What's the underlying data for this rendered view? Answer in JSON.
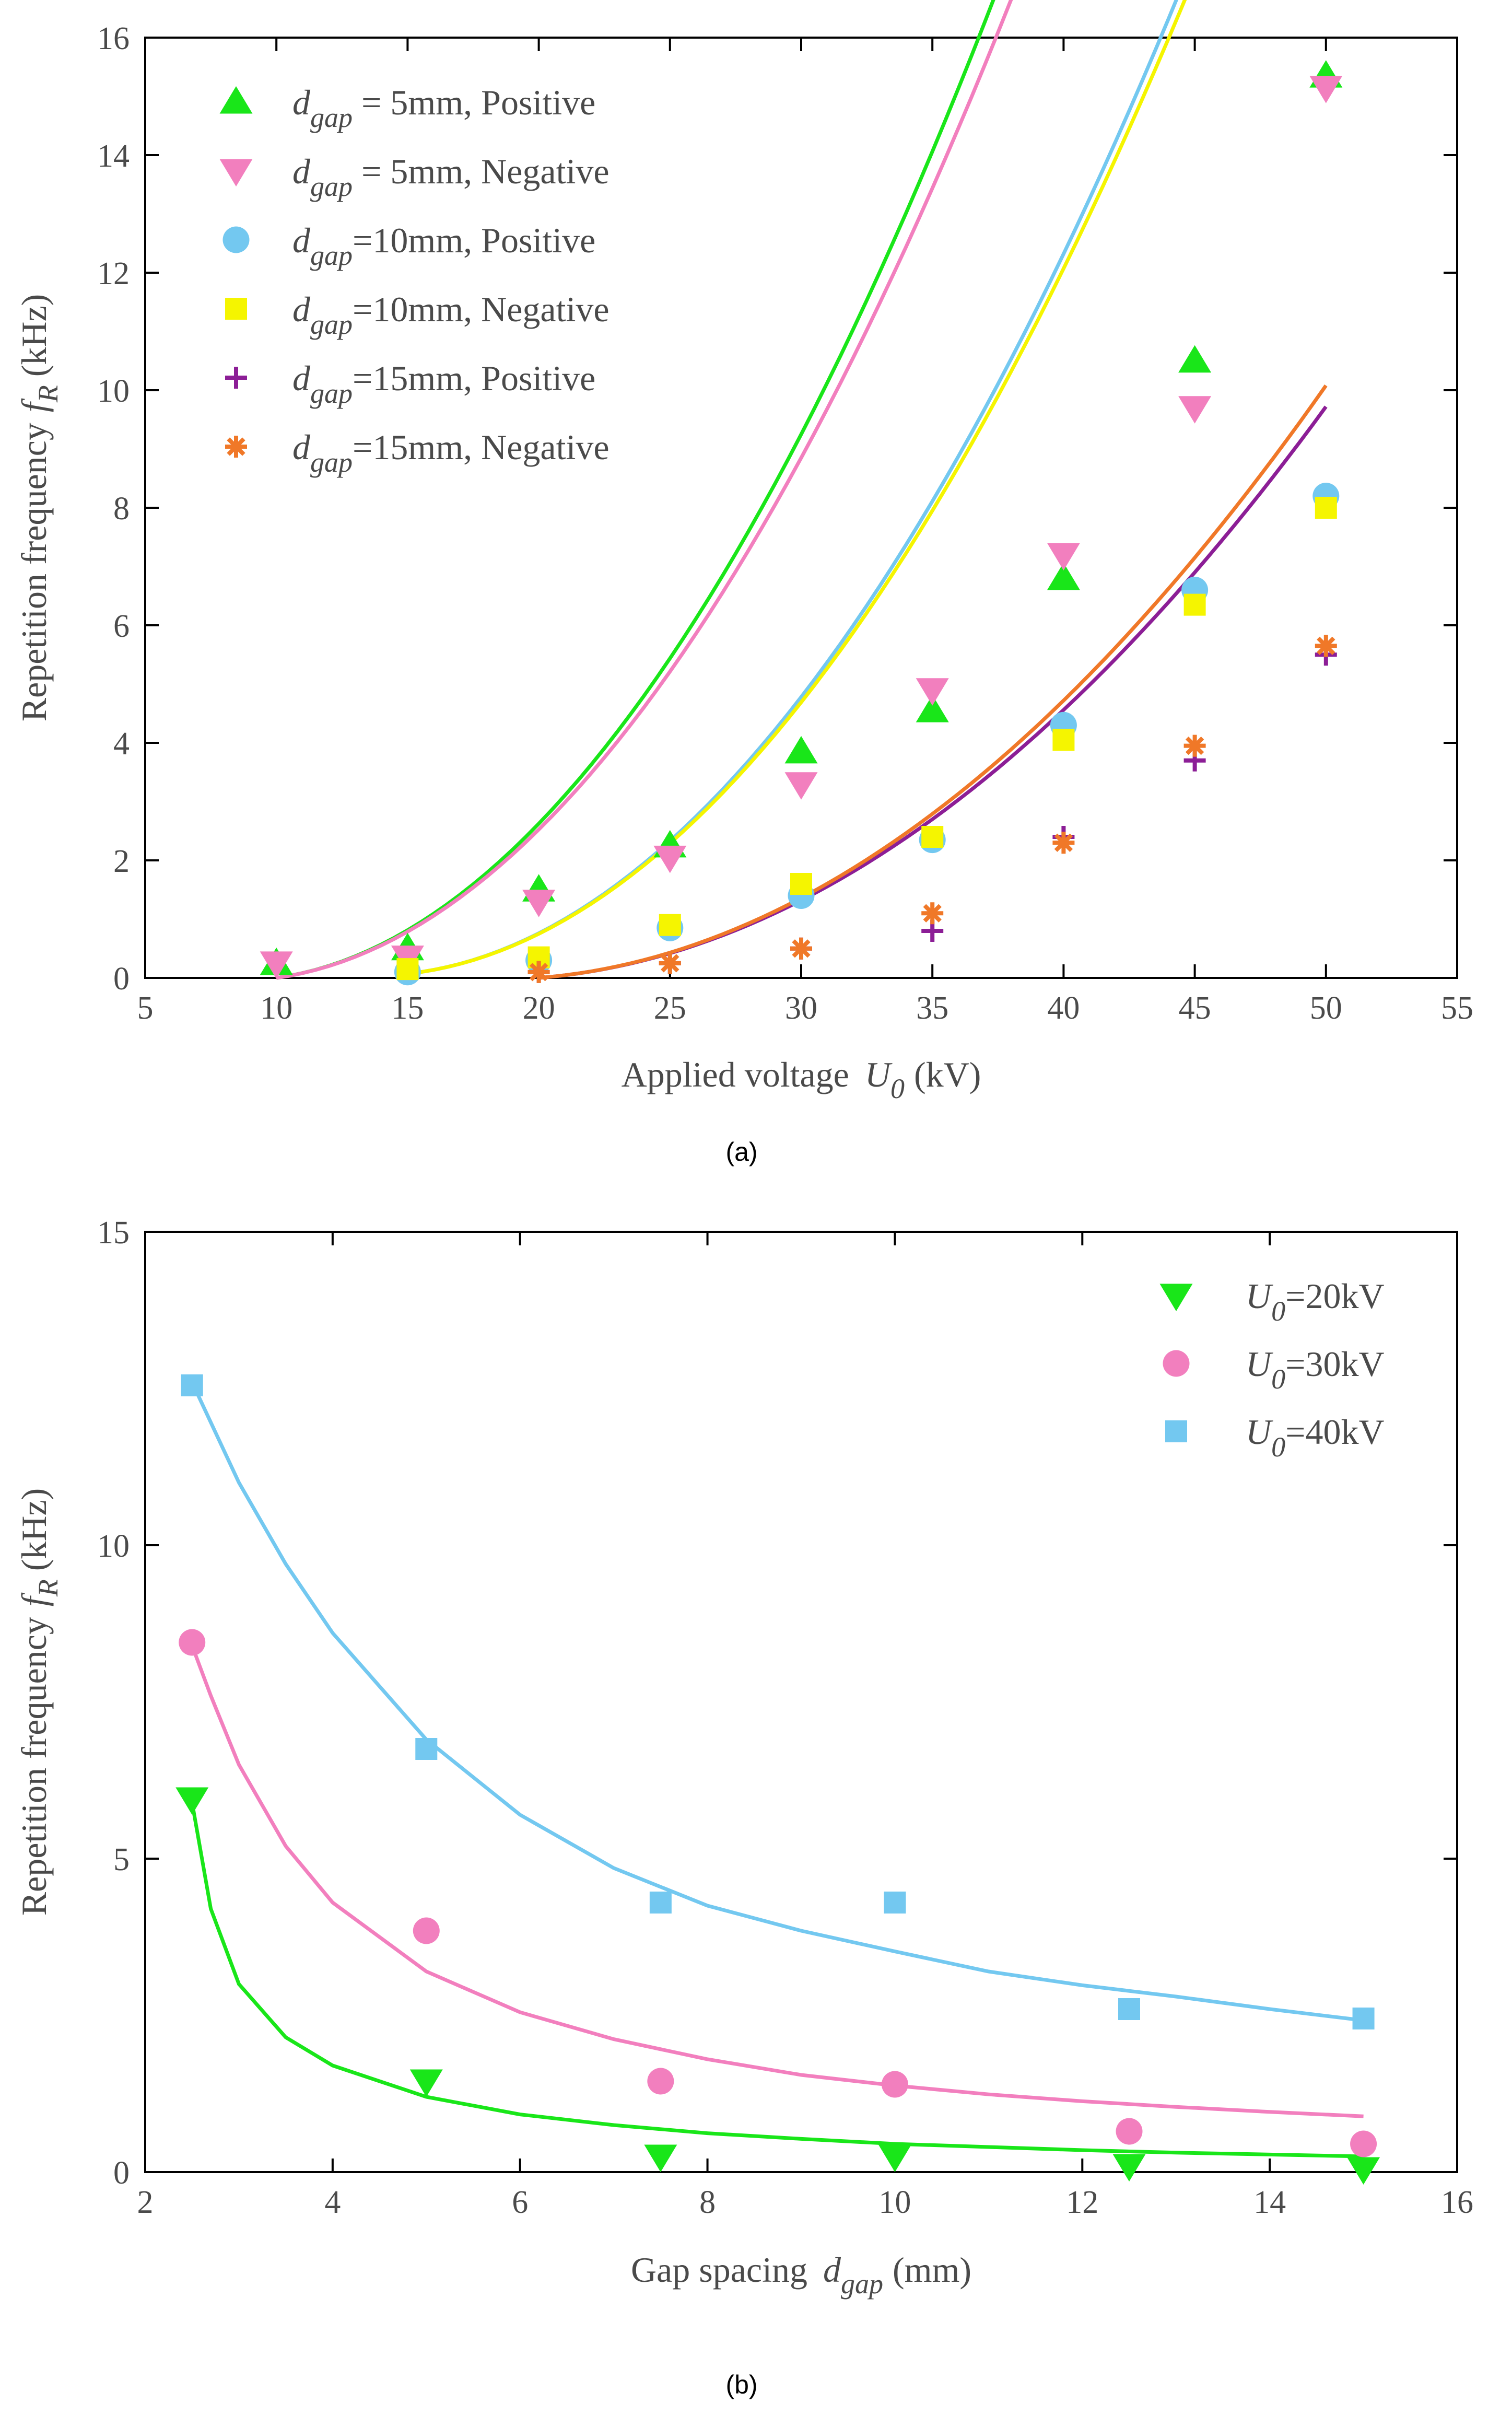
{
  "chart_data": [
    {
      "type": "scatter",
      "caption": "(a)",
      "xlabel_main": "Applied voltage",
      "xlabel_sym": "U",
      "xlabel_sub": "0",
      "xlabel_unit": "(kV)",
      "ylabel_main": "Repetition frequency",
      "ylabel_sym": "f",
      "ylabel_sub": "R",
      "ylabel_unit": "(kHz)",
      "xlim": [
        5,
        55
      ],
      "ylim": [
        0,
        16
      ],
      "xticks": [
        5,
        10,
        15,
        20,
        25,
        30,
        35,
        40,
        45,
        50,
        55
      ],
      "yticks": [
        0,
        2,
        4,
        6,
        8,
        10,
        12,
        14,
        16
      ],
      "legend_position": "top-left",
      "series": [
        {
          "legend_sym": "d",
          "legend_sub": "gap",
          "legend_rest": " = 5mm, Positive",
          "marker": "triangle-up",
          "color": "#19e619",
          "x": [
            10,
            15,
            20,
            25,
            30,
            35,
            40,
            45,
            50
          ],
          "y": [
            0.25,
            0.5,
            1.5,
            2.25,
            3.85,
            4.55,
            6.8,
            10.5,
            15.35
          ],
          "fit": [
            0,
            0.3125,
            0.5
          ]
        },
        {
          "legend_sym": "d",
          "legend_sub": "gap",
          "legend_rest": " = 5mm, Negative",
          "marker": "triangle-down",
          "color": "#f27fbe",
          "x": [
            10,
            15,
            20,
            25,
            30,
            35,
            40,
            45,
            50
          ],
          "y": [
            0.25,
            0.35,
            1.3,
            2.05,
            3.3,
            4.9,
            7.2,
            9.7,
            15.15
          ],
          "fit": [
            0,
            0.3125,
            0.475
          ]
        },
        {
          "legend_sym": "d",
          "legend_sub": "gap",
          "legend_rest": "=10mm, Positive",
          "marker": "circle",
          "color": "#73c8f0",
          "x": [
            15,
            20,
            25,
            30,
            35,
            40,
            45,
            50
          ],
          "y": [
            0.1,
            0.3,
            0.85,
            1.4,
            2.35,
            4.3,
            6.6,
            8.2
          ],
          "fit": [
            0.07,
            0.25,
            0.44
          ]
        },
        {
          "legend_sym": "d",
          "legend_sub": "gap",
          "legend_rest": "=10mm, Negative",
          "marker": "square",
          "color": "#f5f500",
          "x": [
            15,
            20,
            25,
            30,
            35,
            40,
            45,
            50
          ],
          "y": [
            0.15,
            0.35,
            0.9,
            1.6,
            2.4,
            4.05,
            6.35,
            8.0
          ],
          "fit": [
            0.07,
            0.25,
            0.43
          ]
        },
        {
          "legend_sym": "d",
          "legend_sub": "gap",
          "legend_rest": "=15mm, Positive",
          "marker": "plus",
          "color": "#8c1e96",
          "x": [
            20,
            25,
            30,
            35,
            40,
            45,
            50
          ],
          "y": [
            0.1,
            0.25,
            0.5,
            0.8,
            2.4,
            3.7,
            5.5
          ],
          "fit": [
            0,
            0.18,
            0.24
          ]
        },
        {
          "legend_sym": "d",
          "legend_sub": "gap",
          "legend_rest": "=15mm, Negative",
          "marker": "asterisk",
          "color": "#f07828",
          "x": [
            20,
            25,
            30,
            35,
            40,
            45,
            50
          ],
          "y": [
            0.1,
            0.25,
            0.5,
            1.1,
            2.3,
            3.95,
            5.65
          ],
          "fit": [
            0,
            0.18,
            0.25
          ]
        }
      ]
    },
    {
      "type": "scatter",
      "caption": "(b)",
      "xlabel_main": "Gap spacing",
      "xlabel_sym": "d",
      "xlabel_sub": "gap",
      "xlabel_unit": "(mm)",
      "ylabel_main": "Repetition frequency",
      "ylabel_sym": "f",
      "ylabel_sub": "R",
      "ylabel_unit": "(kHz)",
      "xlim": [
        2,
        16
      ],
      "ylim": [
        0,
        15
      ],
      "xticks": [
        2,
        4,
        6,
        8,
        10,
        12,
        14,
        16
      ],
      "yticks": [
        0,
        5,
        10,
        15
      ],
      "legend_position": "top-right",
      "series": [
        {
          "legend_sym": "U",
          "legend_sub": "0",
          "legend_rest": "=20kV",
          "marker": "triangle-down",
          "color": "#19e619",
          "x": [
            2.5,
            5,
            7.5,
            10,
            12.5,
            15
          ],
          "y": [
            5.95,
            1.45,
            0.25,
            0.25,
            0.1,
            0.05
          ],
          "fit_curve": [
            [
              2.5,
              5.9
            ],
            [
              2.7,
              4.2
            ],
            [
              3.0,
              3.0
            ],
            [
              3.5,
              2.15
            ],
            [
              4.0,
              1.7
            ],
            [
              5.0,
              1.2
            ],
            [
              6.0,
              0.92
            ],
            [
              7.0,
              0.75
            ],
            [
              8.0,
              0.62
            ],
            [
              9.0,
              0.53
            ],
            [
              10.0,
              0.45
            ],
            [
              11.0,
              0.4
            ],
            [
              12.0,
              0.35
            ],
            [
              13.0,
              0.31
            ],
            [
              14.0,
              0.28
            ],
            [
              15.0,
              0.25
            ]
          ]
        },
        {
          "legend_sym": "U",
          "legend_sub": "0",
          "legend_rest": "=30kV",
          "marker": "circle",
          "color": "#f27fbe",
          "x": [
            2.5,
            5,
            7.5,
            10,
            12.5,
            15
          ],
          "y": [
            8.45,
            3.85,
            1.45,
            1.4,
            0.65,
            0.45
          ],
          "fit_curve": [
            [
              2.5,
              8.4
            ],
            [
              2.7,
              7.6
            ],
            [
              3.0,
              6.5
            ],
            [
              3.5,
              5.2
            ],
            [
              4.0,
              4.3
            ],
            [
              5.0,
              3.2
            ],
            [
              6.0,
              2.55
            ],
            [
              7.0,
              2.12
            ],
            [
              8.0,
              1.8
            ],
            [
              9.0,
              1.55
            ],
            [
              10.0,
              1.38
            ],
            [
              11.0,
              1.24
            ],
            [
              12.0,
              1.13
            ],
            [
              13.0,
              1.04
            ],
            [
              14.0,
              0.96
            ],
            [
              15.0,
              0.89
            ]
          ]
        },
        {
          "legend_sym": "U",
          "legend_sub": "0",
          "legend_rest": "=40kV",
          "marker": "square",
          "color": "#73c8f0",
          "x": [
            2.5,
            5,
            7.5,
            10,
            12.5,
            15
          ],
          "y": [
            12.55,
            6.75,
            4.3,
            4.3,
            2.6,
            2.45
          ],
          "fit_curve": [
            [
              2.5,
              12.6
            ],
            [
              3.0,
              11.0
            ],
            [
              3.5,
              9.7
            ],
            [
              4.0,
              8.6
            ],
            [
              5.0,
              6.9
            ],
            [
              6.0,
              5.7
            ],
            [
              7.0,
              4.85
            ],
            [
              8.0,
              4.25
            ],
            [
              9.0,
              3.85
            ],
            [
              10.0,
              3.52
            ],
            [
              11.0,
              3.2
            ],
            [
              12.0,
              2.98
            ],
            [
              13.0,
              2.8
            ],
            [
              14.0,
              2.6
            ],
            [
              15.0,
              2.42
            ]
          ]
        }
      ]
    }
  ]
}
